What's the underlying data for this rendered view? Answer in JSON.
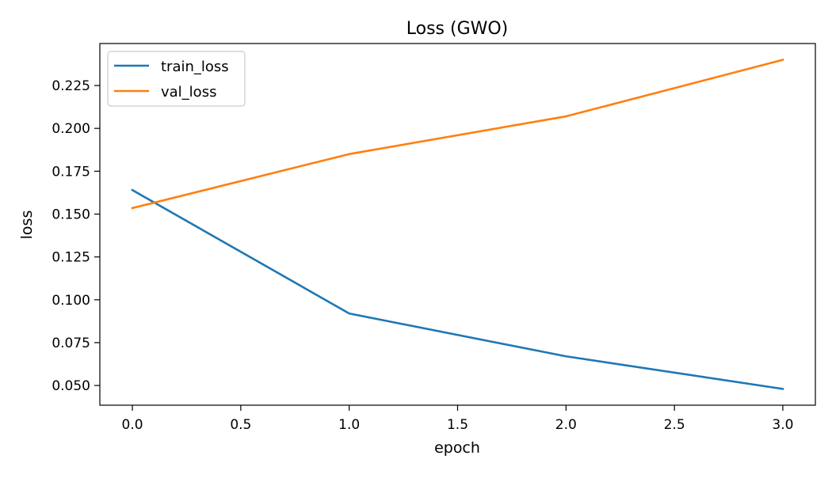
{
  "chart_data": {
    "type": "line",
    "title": "Loss (GWO)",
    "xlabel": "epoch",
    "ylabel": "loss",
    "x": [
      0,
      1,
      2,
      3
    ],
    "xlim": [
      -0.15,
      3.15
    ],
    "ylim": [
      0.0385,
      0.2495
    ],
    "xticks": [
      0.0,
      0.5,
      1.0,
      1.5,
      2.0,
      2.5,
      3.0
    ],
    "xtick_labels": [
      "0.0",
      "0.5",
      "1.0",
      "1.5",
      "2.0",
      "2.5",
      "3.0"
    ],
    "yticks": [
      0.05,
      0.075,
      0.1,
      0.125,
      0.15,
      0.175,
      0.2,
      0.225
    ],
    "ytick_labels": [
      "0.050",
      "0.075",
      "0.100",
      "0.125",
      "0.150",
      "0.175",
      "0.200",
      "0.225"
    ],
    "grid": false,
    "legend_position": "upper-left",
    "series": [
      {
        "name": "train_loss",
        "color": "#1f77b4",
        "values": [
          0.164,
          0.092,
          0.067,
          0.048
        ]
      },
      {
        "name": "val_loss",
        "color": "#ff7f0e",
        "values": [
          0.1535,
          0.185,
          0.207,
          0.24
        ]
      }
    ]
  }
}
